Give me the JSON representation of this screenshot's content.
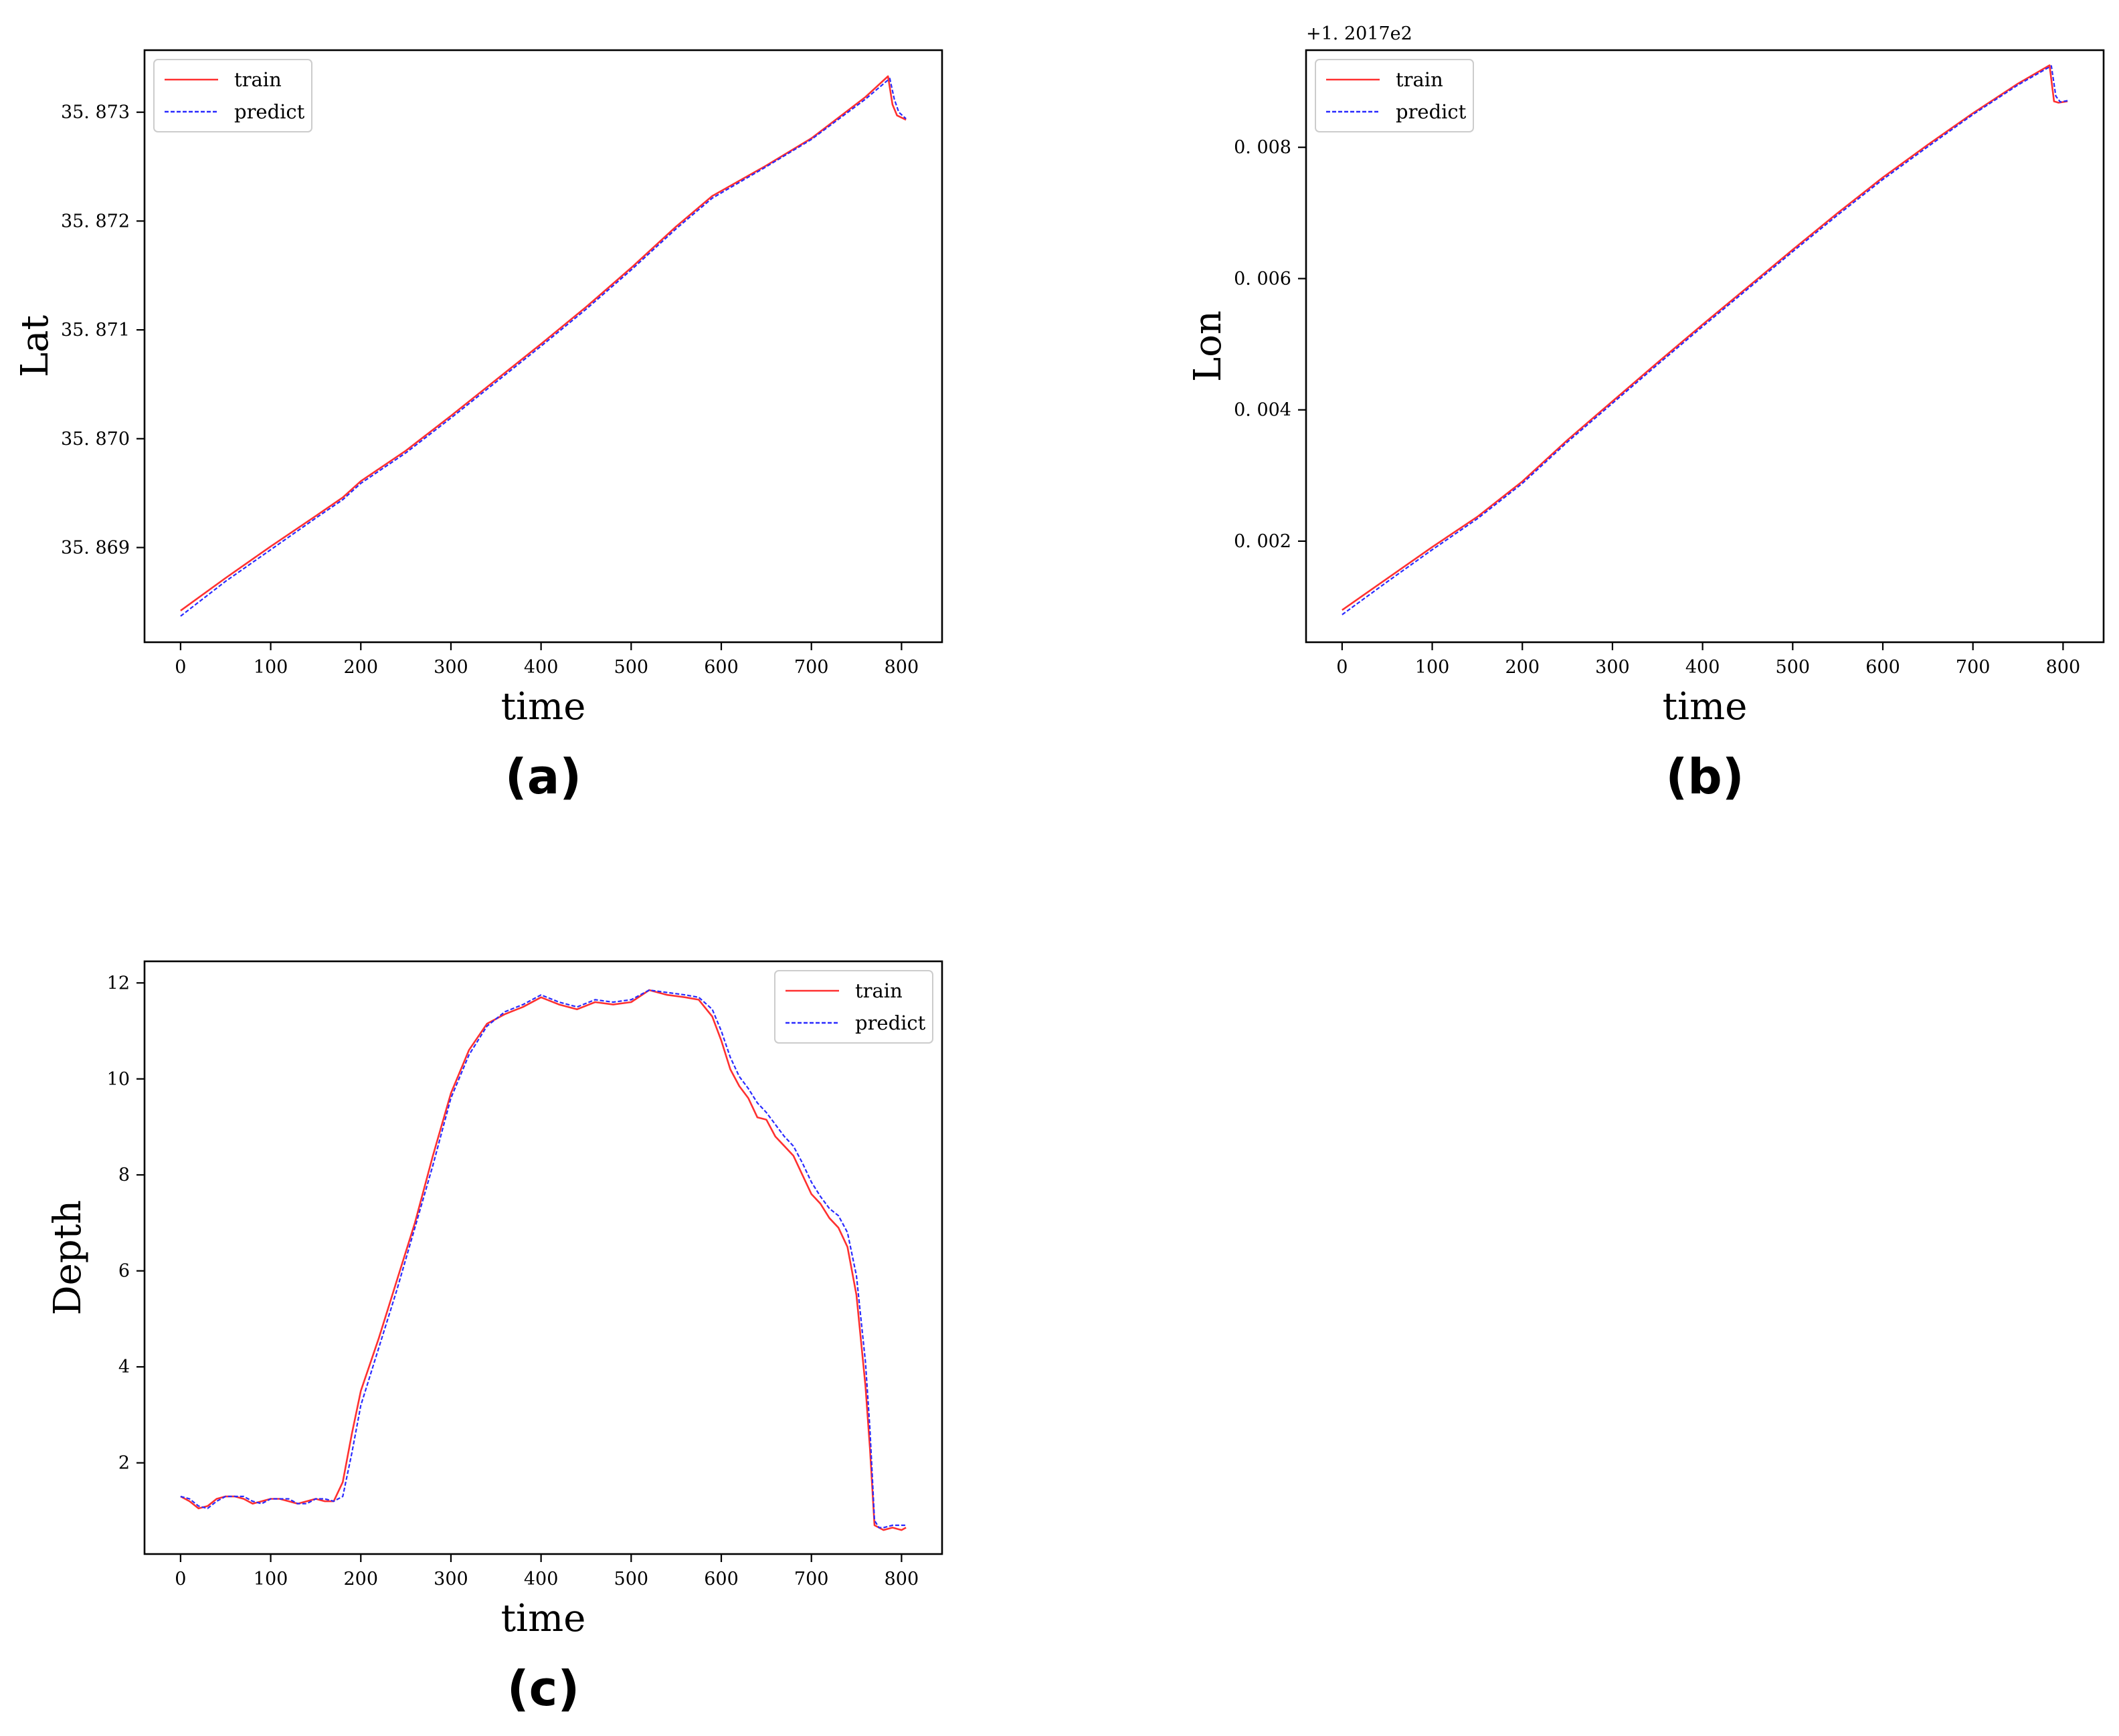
{
  "colors": {
    "train": "#ff3030",
    "predict": "#2a2aff",
    "axis": "#000000",
    "legend_border": "#cccccc"
  },
  "chart_data": [
    {
      "type": "line",
      "caption": "(a)",
      "xlabel": "time",
      "ylabel": "Lat",
      "offset_text": "",
      "xlim": [
        -40,
        845
      ],
      "ylim": [
        35.86813,
        35.87357
      ],
      "xticks": [
        0,
        100,
        200,
        300,
        400,
        500,
        600,
        700,
        800
      ],
      "xtick_labels": [
        "0",
        "100",
        "200",
        "300",
        "400",
        "500",
        "600",
        "700",
        "800"
      ],
      "yticks": [
        35.869,
        35.87,
        35.871,
        35.872,
        35.873
      ],
      "ytick_labels": [
        "35. 869",
        "35. 870",
        "35. 871",
        "35. 872",
        "35. 873"
      ],
      "legend": {
        "position": "upper left",
        "entries": [
          "train",
          "predict"
        ]
      },
      "series": [
        {
          "name": "train",
          "style": "solid",
          "x": [
            0,
            50,
            100,
            150,
            180,
            200,
            250,
            300,
            350,
            400,
            450,
            500,
            550,
            590,
            650,
            700,
            760,
            785,
            790,
            795,
            805
          ],
          "y": [
            35.86842,
            35.86872,
            35.86901,
            35.86929,
            35.86946,
            35.86961,
            35.86989,
            35.87021,
            35.87054,
            35.87087,
            35.87121,
            35.87157,
            35.87195,
            35.87223,
            35.87251,
            35.87276,
            35.87314,
            35.87333,
            35.87307,
            35.87297,
            35.87293
          ]
        },
        {
          "name": "predict",
          "style": "dashed",
          "x": [
            0,
            50,
            100,
            150,
            180,
            200,
            250,
            300,
            350,
            400,
            450,
            500,
            550,
            590,
            650,
            700,
            760,
            787,
            792,
            797,
            805
          ],
          "y": [
            35.86837,
            35.86869,
            35.86898,
            35.86927,
            35.86944,
            35.86959,
            35.86987,
            35.87019,
            35.87052,
            35.87085,
            35.87119,
            35.87155,
            35.87193,
            35.87221,
            35.8725,
            35.87275,
            35.87312,
            35.87331,
            35.87312,
            35.873,
            35.87294
          ]
        }
      ]
    },
    {
      "type": "line",
      "caption": "(b)",
      "xlabel": "time",
      "ylabel": "Lon",
      "offset_text": "+1. 2017e2",
      "xlim": [
        -40,
        845
      ],
      "ylim": [
        0.00046,
        0.00948
      ],
      "xticks": [
        0,
        100,
        200,
        300,
        400,
        500,
        600,
        700,
        800
      ],
      "xtick_labels": [
        "0",
        "100",
        "200",
        "300",
        "400",
        "500",
        "600",
        "700",
        "800"
      ],
      "yticks": [
        0.002,
        0.004,
        0.006,
        0.008
      ],
      "ytick_labels": [
        "0. 002",
        "0. 004",
        "0. 006",
        "0. 008"
      ],
      "legend": {
        "position": "upper left",
        "entries": [
          "train",
          "predict"
        ]
      },
      "series": [
        {
          "name": "train",
          "style": "solid",
          "x": [
            0,
            50,
            100,
            150,
            200,
            250,
            300,
            350,
            400,
            450,
            500,
            550,
            600,
            650,
            700,
            750,
            785,
            790,
            795,
            805
          ],
          "y": [
            0.00095,
            0.00143,
            0.00191,
            0.00237,
            0.00291,
            0.00354,
            0.00413,
            0.00472,
            0.0053,
            0.00587,
            0.00644,
            0.007,
            0.00754,
            0.00804,
            0.00852,
            0.00897,
            0.00925,
            0.0087,
            0.00868,
            0.0087
          ]
        },
        {
          "name": "predict",
          "style": "dashed",
          "x": [
            0,
            50,
            100,
            150,
            200,
            250,
            300,
            350,
            400,
            450,
            500,
            550,
            600,
            650,
            700,
            750,
            787,
            792,
            797,
            805
          ],
          "y": [
            0.00088,
            0.00138,
            0.00187,
            0.00234,
            0.00288,
            0.00351,
            0.0041,
            0.00469,
            0.00527,
            0.00584,
            0.00641,
            0.00697,
            0.00751,
            0.00801,
            0.0085,
            0.00895,
            0.00924,
            0.00878,
            0.00869,
            0.00871
          ]
        }
      ]
    },
    {
      "type": "line",
      "caption": "(c)",
      "xlabel": "time",
      "ylabel": "Depth",
      "offset_text": "",
      "xlim": [
        -40,
        845
      ],
      "ylim": [
        0.1,
        12.45
      ],
      "xticks": [
        0,
        100,
        200,
        300,
        400,
        500,
        600,
        700,
        800
      ],
      "xtick_labels": [
        "0",
        "100",
        "200",
        "300",
        "400",
        "500",
        "600",
        "700",
        "800"
      ],
      "yticks": [
        2,
        4,
        6,
        8,
        10,
        12
      ],
      "ytick_labels": [
        "2",
        "4",
        "6",
        "8",
        "10",
        "12"
      ],
      "legend": {
        "position": "upper right",
        "entries": [
          "train",
          "predict"
        ]
      },
      "series": [
        {
          "name": "train",
          "style": "solid",
          "x": [
            0,
            10,
            20,
            30,
            40,
            50,
            60,
            70,
            80,
            90,
            100,
            110,
            120,
            130,
            140,
            150,
            160,
            170,
            180,
            190,
            200,
            220,
            240,
            260,
            280,
            300,
            320,
            340,
            360,
            380,
            400,
            420,
            440,
            460,
            480,
            500,
            520,
            540,
            560,
            575,
            590,
            600,
            610,
            620,
            630,
            640,
            650,
            660,
            670,
            680,
            690,
            700,
            710,
            720,
            730,
            740,
            750,
            760,
            765,
            770,
            775,
            780,
            790,
            800,
            805
          ],
          "y": [
            1.3,
            1.2,
            1.05,
            1.1,
            1.25,
            1.3,
            1.3,
            1.25,
            1.15,
            1.2,
            1.25,
            1.25,
            1.2,
            1.15,
            1.2,
            1.25,
            1.2,
            1.2,
            1.6,
            2.6,
            3.5,
            4.6,
            5.8,
            7.0,
            8.4,
            9.7,
            10.6,
            11.15,
            11.35,
            11.5,
            11.7,
            11.55,
            11.45,
            11.6,
            11.55,
            11.6,
            11.85,
            11.75,
            11.7,
            11.65,
            11.3,
            10.8,
            10.2,
            9.85,
            9.6,
            9.2,
            9.15,
            8.8,
            8.6,
            8.4,
            8.0,
            7.6,
            7.4,
            7.1,
            6.9,
            6.5,
            5.5,
            3.6,
            2.3,
            0.7,
            0.65,
            0.6,
            0.65,
            0.6,
            0.65
          ]
        },
        {
          "name": "predict",
          "style": "dashed",
          "x": [
            0,
            10,
            20,
            30,
            40,
            50,
            60,
            70,
            80,
            90,
            100,
            110,
            120,
            130,
            140,
            150,
            160,
            170,
            180,
            190,
            200,
            220,
            240,
            260,
            280,
            300,
            320,
            340,
            360,
            380,
            400,
            420,
            440,
            460,
            480,
            500,
            520,
            540,
            560,
            575,
            590,
            600,
            610,
            620,
            630,
            640,
            650,
            660,
            670,
            680,
            690,
            700,
            710,
            720,
            730,
            740,
            750,
            760,
            765,
            770,
            775,
            780,
            790,
            800,
            805
          ],
          "y": [
            1.3,
            1.25,
            1.1,
            1.05,
            1.2,
            1.3,
            1.3,
            1.3,
            1.2,
            1.15,
            1.25,
            1.25,
            1.25,
            1.15,
            1.15,
            1.25,
            1.25,
            1.2,
            1.3,
            2.2,
            3.2,
            4.4,
            5.6,
            6.9,
            8.2,
            9.6,
            10.5,
            11.1,
            11.4,
            11.55,
            11.75,
            11.6,
            11.5,
            11.65,
            11.6,
            11.65,
            11.85,
            11.8,
            11.75,
            11.7,
            11.45,
            11.0,
            10.45,
            10.05,
            9.8,
            9.5,
            9.3,
            9.05,
            8.8,
            8.6,
            8.25,
            7.85,
            7.55,
            7.3,
            7.15,
            6.8,
            5.9,
            4.1,
            2.7,
            0.8,
            0.65,
            0.65,
            0.7,
            0.7,
            0.7
          ]
        }
      ]
    }
  ]
}
